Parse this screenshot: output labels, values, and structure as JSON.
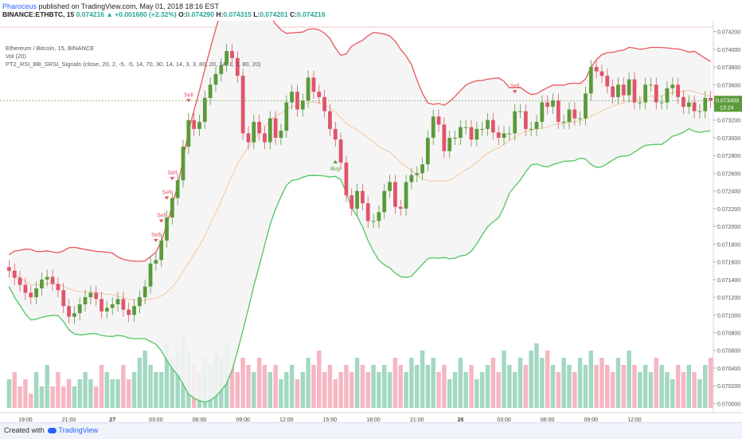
{
  "header": {
    "publisher": "Pharoceus",
    "published_text": "published on TradingView.com, May 01, 2018 18:16 EST",
    "symbol": "BINANCE:ETHBTC, 15",
    "last": "0.074216",
    "change": "+0.001680 (+2.32%)",
    "o_label": "O:",
    "o_val": "0.074290",
    "h_label": "H:",
    "h_val": "0.074315",
    "l_label": "L:",
    "l_val": "0.074201",
    "c_label": "C:",
    "c_val": "0.074216"
  },
  "legend": {
    "line1": "Ethereum / Bitcoin, 15, BINANCE",
    "line2": "Vol (20)",
    "line3": "PT2_RSI_BB_SRSI_Signals (close, 20, 2, -5, -5, 14, 70, 30, 14, 14, 3, 3, 80, 20, 14, 1, 3, 80, 20)"
  },
  "footer": {
    "created_with": "Created with",
    "brand": "TradingView"
  },
  "price_badge": {
    "price": "0.073409",
    "countdown": "13:24"
  },
  "colors": {
    "up": "#5b9a3a",
    "down": "#e0546a",
    "upper_band": "#e8565e",
    "lower_band": "#52c464",
    "basis": "#f4a460",
    "vol_up": "#a3d8c2",
    "vol_down": "#f6b6c2",
    "badge": "#5b9a3a"
  },
  "chart_data": {
    "type": "candlestick",
    "y_axis": {
      "ylim": [
        0.06995,
        0.07425
      ],
      "ticks": [
        "0.074200",
        "0.074000",
        "0.073800",
        "0.073600",
        "0.073400",
        "0.073200",
        "0.073000",
        "0.072800",
        "0.072600",
        "0.072400",
        "0.072200",
        "0.072000",
        "0.071800",
        "0.071600",
        "0.071400",
        "0.071200",
        "0.071000",
        "0.070800",
        "0.070600",
        "0.070400",
        "0.070200",
        "0.070000"
      ]
    },
    "x_axis": {
      "labels": [
        "19:00",
        "21:00",
        "27",
        "03:00",
        "06:00",
        "09:00",
        "12:00",
        "15:00",
        "18:00",
        "21:00",
        "28",
        "03:00",
        "06:00",
        "09:00",
        "12:00"
      ],
      "label_index": [
        3,
        11,
        19,
        27,
        35,
        43,
        51,
        59,
        67,
        75,
        83,
        91,
        99,
        107,
        115
      ],
      "bold": [
        false,
        false,
        true,
        false,
        false,
        false,
        false,
        false,
        false,
        false,
        true,
        false,
        false,
        false,
        false
      ]
    },
    "candles_close": [
      0.0715,
      0.07142,
      0.07134,
      0.07125,
      0.0712,
      0.0713,
      0.0714,
      0.07143,
      0.07135,
      0.07128,
      0.0711,
      0.07098,
      0.07102,
      0.07112,
      0.0712,
      0.07125,
      0.07118,
      0.07104,
      0.07108,
      0.07112,
      0.07118,
      0.07106,
      0.071,
      0.0711,
      0.0712,
      0.07132,
      0.07158,
      0.07162,
      0.07184,
      0.0721,
      0.07232,
      0.07252,
      0.0729,
      0.0732,
      0.0731,
      0.07318,
      0.07345,
      0.0736,
      0.07372,
      0.07382,
      0.07398,
      0.0739,
      0.0737,
      0.07305,
      0.07295,
      0.07318,
      0.07305,
      0.07295,
      0.07322,
      0.073,
      0.07308,
      0.0734,
      0.07352,
      0.07332,
      0.07342,
      0.07368,
      0.07352,
      0.07346,
      0.0733,
      0.0731,
      0.07298,
      0.07272,
      0.07235,
      0.0722,
      0.0724,
      0.07226,
      0.07206,
      0.07206,
      0.07216,
      0.0724,
      0.0725,
      0.07222,
      0.0722,
      0.0725,
      0.07258,
      0.0726,
      0.0727,
      0.073,
      0.07324,
      0.07315,
      0.07285,
      0.073,
      0.073,
      0.07312,
      0.07312,
      0.07298,
      0.0731,
      0.0731,
      0.0732,
      0.07306,
      0.073,
      0.07305,
      0.07305,
      0.0733,
      0.0733,
      0.0731,
      0.0731,
      0.07318,
      0.0734,
      0.07335,
      0.07342,
      0.07318,
      0.07318,
      0.07332,
      0.07322,
      0.07322,
      0.0735,
      0.0738,
      0.07375,
      0.0737,
      0.07358,
      0.07346,
      0.0736,
      0.07348,
      0.07366,
      0.0734,
      0.0734,
      0.0736,
      0.0736,
      0.0734,
      0.0734,
      0.07356,
      0.0736,
      0.07346,
      0.07335,
      0.0734,
      0.0733,
      0.0733,
      0.07345,
      0.07342
    ],
    "vol_values": [
      4,
      5,
      3,
      4,
      2,
      5,
      3,
      6,
      3,
      5,
      3,
      4,
      3,
      4,
      5,
      4,
      3,
      6,
      5,
      4,
      4,
      6,
      4,
      5,
      7,
      8,
      6,
      5,
      5,
      9,
      7,
      8,
      10,
      8,
      6,
      5,
      7,
      6,
      8,
      7,
      9,
      6,
      5,
      7,
      6,
      5,
      7,
      6,
      5,
      6,
      4,
      5,
      6,
      4,
      5,
      7,
      6,
      8,
      5,
      6,
      4,
      5,
      6,
      5,
      7,
      6,
      5,
      6,
      5,
      6,
      5,
      7,
      6,
      5,
      7,
      6,
      8,
      6,
      7,
      5,
      6,
      4,
      5,
      7,
      5,
      6,
      4,
      5,
      6,
      7,
      5,
      8,
      6,
      5,
      7,
      6,
      8,
      9,
      7,
      8,
      6,
      5,
      7,
      6,
      5,
      7,
      6,
      8,
      6,
      7,
      6,
      5,
      7,
      6,
      8,
      6,
      5,
      6,
      5,
      7,
      6,
      5,
      4,
      6,
      5,
      6,
      5,
      4,
      6,
      7
    ],
    "signals": [
      {
        "label": "Sell",
        "index": 33
      },
      {
        "label": "Sell",
        "index": 29
      },
      {
        "label": "Sell",
        "index": 30
      },
      {
        "label": "Sell",
        "index": 27
      },
      {
        "label": "Sell",
        "index": 28
      },
      {
        "label": "Buy",
        "index": 60
      },
      {
        "label": "Sell",
        "index": 93
      }
    ]
  }
}
